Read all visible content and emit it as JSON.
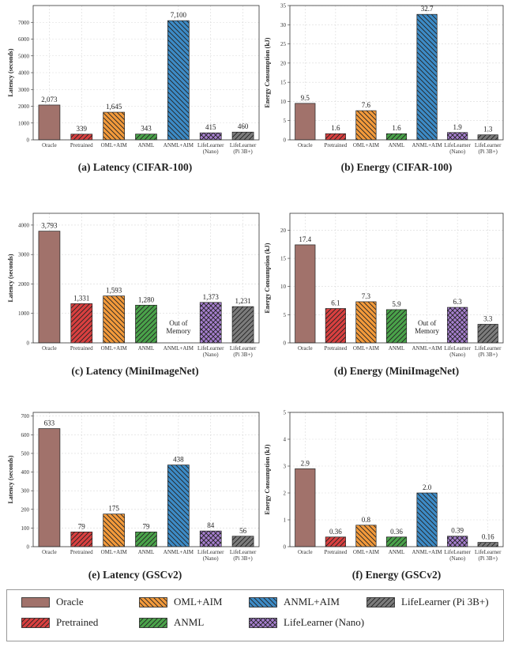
{
  "colors": {
    "Oracle": "#a1726b",
    "Pretrained": "#d94040",
    "OML+AIM": "#f39a3b",
    "ANML": "#4aa34a",
    "ANML+AIM": "#3d8bc6",
    "LifeLearner (Nano)": "#a67fcf",
    "LifeLearner (Pi 3B+)": "#7c7c7c"
  },
  "patterns": {
    "Oracle": "none",
    "Pretrained": "fwd",
    "OML+AIM": "back",
    "ANML": "fwd",
    "ANML+AIM": "back",
    "LifeLearner (Nano)": "cross",
    "LifeLearner (Pi 3B+)": "fwd"
  },
  "legend": {
    "items": [
      "Oracle",
      "OML+AIM",
      "ANML+AIM",
      "LifeLearner (Pi 3B+)",
      "Pretrained",
      "ANML",
      "LifeLearner (Nano)"
    ]
  },
  "chart_data": [
    {
      "type": "bar",
      "caption": "(a) Latency (CIFAR-100)",
      "ylabel": "Latency (seconds)",
      "ylim": [
        0,
        8000
      ],
      "yticks": [
        0,
        1000,
        2000,
        3000,
        4000,
        5000,
        6000,
        7000
      ],
      "categories": [
        "Oracle",
        "Pretrained",
        "OML+AIM",
        "ANML",
        "ANML+AIM",
        "LifeLearner (Nano)",
        "LifeLearner (Pi 3B+)"
      ],
      "tick_labels": [
        [
          "Oracle"
        ],
        [
          "Pretrained"
        ],
        [
          "OML+AIM"
        ],
        [
          "ANML"
        ],
        [
          "ANML+AIM"
        ],
        [
          "LifeLearner",
          "(Nano)"
        ],
        [
          "LifeLearner",
          "(Pi 3B+)"
        ]
      ],
      "values": [
        2073,
        339,
        1645,
        343,
        7100,
        415,
        460
      ],
      "labels": [
        "2,073",
        "339",
        "1,645",
        "343",
        "7,100",
        "415",
        "460"
      ],
      "grid": true
    },
    {
      "type": "bar",
      "caption": "(b) Energy (CIFAR-100)",
      "ylabel": "Energy Consumption (kJ)",
      "ylim": [
        0,
        35
      ],
      "yticks": [
        0,
        5,
        10,
        15,
        20,
        25,
        30,
        35
      ],
      "categories": [
        "Oracle",
        "Pretrained",
        "OML+AIM",
        "ANML",
        "ANML+AIM",
        "LifeLearner (Nano)",
        "LifeLearner (Pi 3B+)"
      ],
      "tick_labels": [
        [
          "Oracle"
        ],
        [
          "Pretrained"
        ],
        [
          "OML+AIM"
        ],
        [
          "ANML"
        ],
        [
          "ANML+AIM"
        ],
        [
          "LifeLearner",
          "(Nano)"
        ],
        [
          "LifeLearner",
          "(Pi 3B+)"
        ]
      ],
      "values": [
        9.5,
        1.6,
        7.6,
        1.6,
        32.7,
        1.9,
        1.3
      ],
      "labels": [
        "9.5",
        "1.6",
        "7.6",
        "1.6",
        "32.7",
        "1.9",
        "1.3"
      ],
      "grid": true
    },
    {
      "type": "bar",
      "caption": "(c) Latency (MiniImageNet)",
      "ylabel": "Latency (seconds)",
      "ylim": [
        0,
        4400
      ],
      "yticks": [
        0,
        1000,
        2000,
        3000,
        4000
      ],
      "categories": [
        "Oracle",
        "Pretrained",
        "OML+AIM",
        "ANML",
        "ANML+AIM",
        "LifeLearner (Nano)",
        "LifeLearner (Pi 3B+)"
      ],
      "tick_labels": [
        [
          "Oracle"
        ],
        [
          "Pretrained"
        ],
        [
          "OML+AIM"
        ],
        [
          "ANML"
        ],
        [
          "ANML+AIM"
        ],
        [
          "LifeLearner",
          "(Nano)"
        ],
        [
          "LifeLearner",
          "(Pi 3B+)"
        ]
      ],
      "values": [
        3793,
        1331,
        1593,
        1280,
        null,
        1373,
        1231
      ],
      "labels": [
        "3,793",
        "1,331",
        "1,593",
        "1,280",
        "",
        "1,373",
        "1,231"
      ],
      "annotation": [
        "Out of",
        "Memory"
      ],
      "annotation_index": 4,
      "grid": true
    },
    {
      "type": "bar",
      "caption": "(d) Energy (MiniImageNet)",
      "ylabel": "Energy Consumption (kJ)",
      "ylim": [
        0,
        23
      ],
      "yticks": [
        0,
        5,
        10,
        15,
        20
      ],
      "categories": [
        "Oracle",
        "Pretrained",
        "OML+AIM",
        "ANML",
        "ANML+AIM",
        "LifeLearner (Nano)",
        "LifeLearner (Pi 3B+)"
      ],
      "tick_labels": [
        [
          "Oracle"
        ],
        [
          "Pretrained"
        ],
        [
          "OML+AIM"
        ],
        [
          "ANML"
        ],
        [
          "ANML+AIM"
        ],
        [
          "LifeLearner",
          "(Nano)"
        ],
        [
          "LifeLearner",
          "(Pi 3B+)"
        ]
      ],
      "values": [
        17.4,
        6.1,
        7.3,
        5.9,
        null,
        6.3,
        3.3
      ],
      "labels": [
        "17.4",
        "6.1",
        "7.3",
        "5.9",
        "",
        "6.3",
        "3.3"
      ],
      "annotation": [
        "Out of",
        "Memory"
      ],
      "annotation_index": 4,
      "grid": true
    },
    {
      "type": "bar",
      "caption": "(e) Latency (GSCv2)",
      "ylabel": "Latency (seconds)",
      "ylim": [
        0,
        720
      ],
      "yticks": [
        0,
        100,
        200,
        300,
        400,
        500,
        600,
        700
      ],
      "categories": [
        "Oracle",
        "Pretrained",
        "OML+AIM",
        "ANML",
        "ANML+AIM",
        "LifeLearner (Nano)",
        "LifeLearner (Pi 3B+)"
      ],
      "tick_labels": [
        [
          "Oracle"
        ],
        [
          "Pretrained"
        ],
        [
          "OML+AIM"
        ],
        [
          "ANML"
        ],
        [
          "ANML+AIM"
        ],
        [
          "LifeLearner",
          "(Nano)"
        ],
        [
          "LifeLearner",
          "(Pi 3B+)"
        ]
      ],
      "values": [
        633,
        79,
        175,
        79,
        438,
        84,
        56
      ],
      "labels": [
        "633",
        "79",
        "175",
        "79",
        "438",
        "84",
        "56"
      ],
      "grid": true
    },
    {
      "type": "bar",
      "caption": "(f) Energy (GSCv2)",
      "ylabel": "Energy Consumption (kJ)",
      "ylim": [
        0,
        5
      ],
      "yticks": [
        0,
        1,
        2,
        3,
        4,
        5
      ],
      "categories": [
        "Oracle",
        "Pretrained",
        "OML+AIM",
        "ANML",
        "ANML+AIM",
        "LifeLearner (Nano)",
        "LifeLearner (Pi 3B+)"
      ],
      "tick_labels": [
        [
          "Oracle"
        ],
        [
          "Pretrained"
        ],
        [
          "OML+AIM"
        ],
        [
          "ANML"
        ],
        [
          "ANML+AIM"
        ],
        [
          "LifeLearner",
          "(Nano)"
        ],
        [
          "LifeLearner",
          "(Pi 3B+)"
        ]
      ],
      "values": [
        2.9,
        0.36,
        0.8,
        0.36,
        2.0,
        0.39,
        0.16
      ],
      "labels": [
        "2.9",
        "0.36",
        "0.8",
        "0.36",
        "2.0",
        "0.39",
        "0.16"
      ],
      "grid": true
    }
  ]
}
